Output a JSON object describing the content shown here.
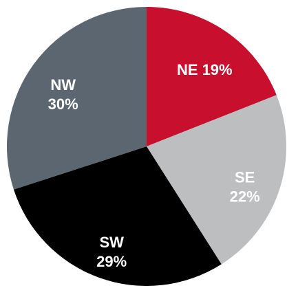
{
  "chart_data": {
    "type": "pie",
    "categories": [
      "NE",
      "SE",
      "SW",
      "NW"
    ],
    "values": [
      19,
      22,
      29,
      30
    ],
    "value_labels": [
      "19%",
      "22%",
      "29%",
      "30%"
    ],
    "colors": [
      "#c8102e",
      "#bcbec0",
      "#000000",
      "#5b6670"
    ]
  }
}
